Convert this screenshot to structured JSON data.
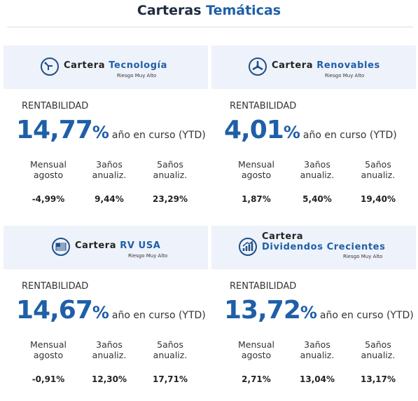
{
  "header": {
    "title_part1": "Carteras",
    "title_part2": "Temáticas"
  },
  "cards": [
    {
      "name_prefix": "Cartera",
      "name_highlight": "Tecnología",
      "risk": "Riesgo Muy Alto",
      "label": "RENTABILIDAD",
      "ytd_value": "14,77",
      "ytd_unit": "%",
      "ytd_caption": "año en curso (YTD)",
      "metrics": [
        {
          "label": [
            "Mensual",
            "agosto"
          ],
          "value": "-4,99%"
        },
        {
          "label": [
            "3años",
            "anualiz."
          ],
          "value": "9,44%"
        },
        {
          "label": [
            "5años",
            "anualiz."
          ],
          "value": "23,29%"
        }
      ]
    },
    {
      "name_prefix": "Cartera",
      "name_highlight": "Renovables",
      "risk": "Riesgo Muy Alto",
      "label": "RENTABILIDAD",
      "ytd_value": "4,01",
      "ytd_unit": "%",
      "ytd_caption": "año en curso (YTD)",
      "metrics": [
        {
          "label": [
            "Mensual",
            "agosto"
          ],
          "value": "1,87%"
        },
        {
          "label": [
            "3años",
            "anualiz."
          ],
          "value": "5,40%"
        },
        {
          "label": [
            "5años",
            "anualiz."
          ],
          "value": "19,40%"
        }
      ]
    },
    {
      "name_prefix": "Cartera",
      "name_highlight": "RV USA",
      "risk": "Riesgo Muy Alto",
      "label": "RENTABILIDAD",
      "ytd_value": "14,67",
      "ytd_unit": "%",
      "ytd_caption": "año en curso (YTD)",
      "metrics": [
        {
          "label": [
            "Mensual",
            "agosto"
          ],
          "value": "-0,91%"
        },
        {
          "label": [
            "3años",
            "anualiz."
          ],
          "value": "12,30%"
        },
        {
          "label": [
            "5años",
            "anualiz."
          ],
          "value": "17,71%"
        }
      ]
    },
    {
      "name_prefix": "Cartera",
      "name_highlight": "Dividendos Crecientes",
      "risk": "Riesgo Muy Alto",
      "label": "RENTABILIDAD",
      "ytd_value": "13,72",
      "ytd_unit": "%",
      "ytd_caption": "año en curso (YTD)",
      "metrics": [
        {
          "label": [
            "Mensual",
            "agosto"
          ],
          "value": "2,71%"
        },
        {
          "label": [
            "3años",
            "anualiz."
          ],
          "value": "13,04%"
        },
        {
          "label": [
            "5años",
            "anualiz."
          ],
          "value": "13,17%"
        }
      ]
    }
  ]
}
